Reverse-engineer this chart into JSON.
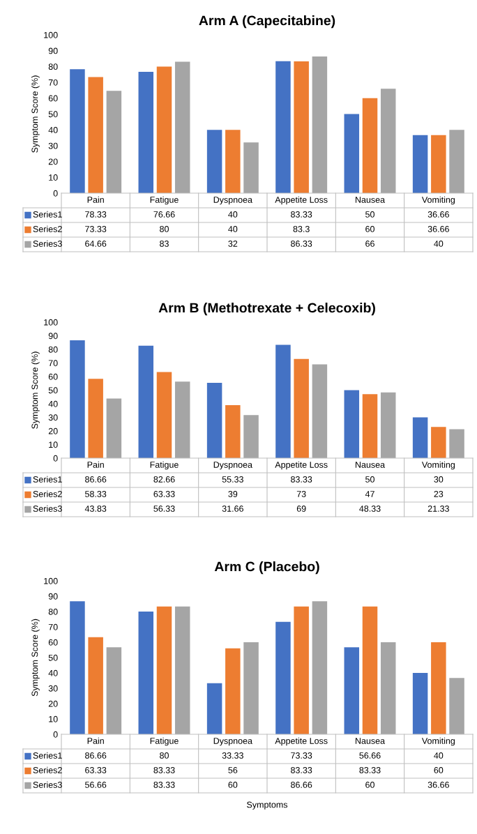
{
  "chart_data": [
    {
      "type": "bar",
      "title": "Arm A (Capecitabine)",
      "legend": "bottom left",
      "ylabel": "Symptom Score (%)",
      "categories": [
        "Pain",
        "Fatigue",
        "Dyspnoea",
        "Appetite Loss",
        "Nausea",
        "Vomiting"
      ],
      "ylim": [
        0,
        100
      ],
      "yticks": [
        0,
        10,
        20,
        30,
        40,
        50,
        60,
        70,
        80,
        90,
        100
      ],
      "data_labels": true,
      "series": [
        {
          "name": "Series1",
          "color": "#4472c4",
          "values": [
            78.33,
            76.66,
            40,
            83.33,
            50,
            36.66
          ]
        },
        {
          "name": "Series2",
          "color": "#ed7d31",
          "values": [
            73.33,
            80,
            40,
            83.3,
            60,
            36.66
          ]
        },
        {
          "name": "Series3",
          "color": "#a5a5a5",
          "values": [
            64.66,
            83,
            32,
            86.33,
            66,
            40
          ]
        }
      ]
    },
    {
      "type": "bar",
      "title": "Arm B (Methotrexate + Celecoxib)",
      "legend": "bottom left",
      "ylabel": "Symptom Score (%)",
      "categories": [
        "Pain",
        "Fatigue",
        "Dyspnoea",
        "Appetite Loss",
        "Nausea",
        "Vomiting"
      ],
      "ylim": [
        0,
        100
      ],
      "yticks": [
        0,
        10,
        20,
        30,
        40,
        50,
        60,
        70,
        80,
        90,
        100
      ],
      "data_labels": true,
      "series": [
        {
          "name": "Series1",
          "color": "#4472c4",
          "values": [
            86.66,
            82.66,
            55.33,
            83.33,
            50,
            30
          ]
        },
        {
          "name": "Series2",
          "color": "#ed7d31",
          "values": [
            58.33,
            63.33,
            39,
            73,
            47,
            23
          ]
        },
        {
          "name": "Series3",
          "color": "#a5a5a5",
          "values": [
            43.83,
            56.33,
            31.66,
            69,
            48.33,
            21.33
          ]
        }
      ]
    },
    {
      "type": "bar",
      "title": "Arm C (Placebo)",
      "legend": "bottom left",
      "ylabel": "Symptom Score (%)",
      "xlabel": "Symptoms",
      "categories": [
        "Pain",
        "Fatigue",
        "Dyspnoea",
        "Appetite Loss",
        "Nausea",
        "Vomiting"
      ],
      "ylim": [
        0,
        100
      ],
      "yticks": [
        0,
        10,
        20,
        30,
        40,
        50,
        60,
        70,
        80,
        90,
        100
      ],
      "data_labels": true,
      "series": [
        {
          "name": "Series1",
          "color": "#4472c4",
          "values": [
            86.66,
            80,
            33.33,
            73.33,
            56.66,
            40
          ]
        },
        {
          "name": "Series2",
          "color": "#ed7d31",
          "values": [
            63.33,
            83.33,
            56,
            83.33,
            83.33,
            60
          ]
        },
        {
          "name": "Series3",
          "color": "#a5a5a5",
          "values": [
            56.66,
            83.33,
            60,
            86.66,
            60,
            36.66
          ]
        }
      ]
    }
  ]
}
